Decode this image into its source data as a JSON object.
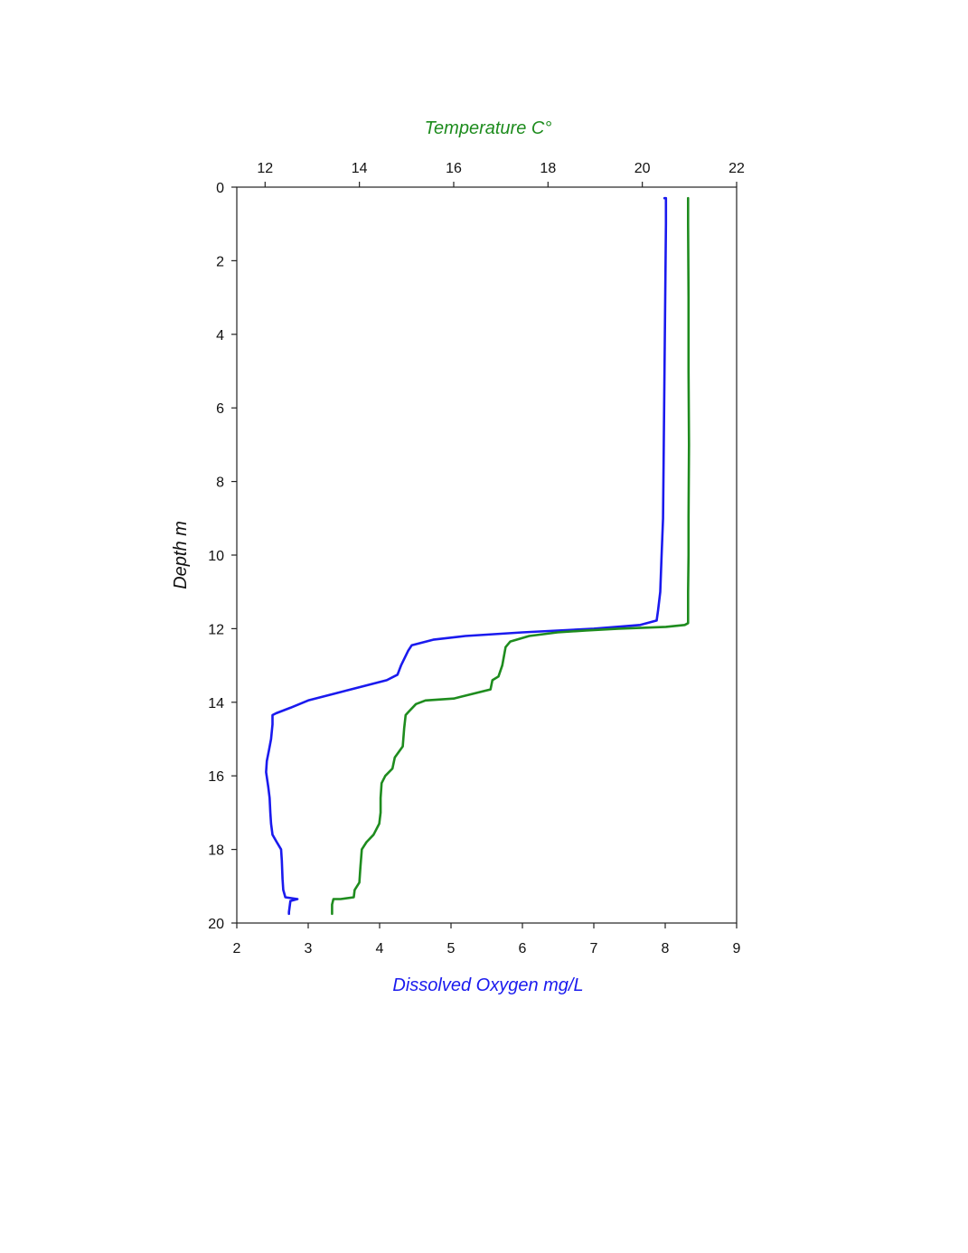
{
  "chart_data": {
    "type": "line",
    "y_axis": {
      "label": "Depth m",
      "range": [
        0,
        20
      ],
      "inverted": true,
      "ticks": [
        "0",
        "2",
        "4",
        "6",
        "8",
        "10",
        "12",
        "14",
        "16",
        "18",
        "20"
      ]
    },
    "x_axis_top": {
      "label": "Temperature C°",
      "range": [
        11.4,
        22
      ],
      "ticks": [
        "12",
        "14",
        "16",
        "18",
        "20",
        "22"
      ],
      "color": "#1e8c1e"
    },
    "x_axis_bottom": {
      "label": "Dissolved Oxygen mg/L",
      "range": [
        2,
        9
      ],
      "ticks": [
        "2",
        "3",
        "4",
        "5",
        "6",
        "7",
        "8",
        "9"
      ],
      "color": "#1a1aee"
    },
    "grid": false,
    "legend": "none",
    "series": [
      {
        "axis": "bottom",
        "color": "#1a1aee",
        "points": [
          [
            7.99,
            0.3
          ],
          [
            8.01,
            0.3
          ],
          [
            8.01,
            1.0
          ],
          [
            8.0,
            3.0
          ],
          [
            7.99,
            5.0
          ],
          [
            7.98,
            7.0
          ],
          [
            7.97,
            9.0
          ],
          [
            7.95,
            10.0
          ],
          [
            7.93,
            11.0
          ],
          [
            7.9,
            11.5
          ],
          [
            7.88,
            11.78
          ],
          [
            7.65,
            11.9
          ],
          [
            7.0,
            12.0
          ],
          [
            6.0,
            12.1
          ],
          [
            5.2,
            12.2
          ],
          [
            4.75,
            12.3
          ],
          [
            4.45,
            12.45
          ],
          [
            4.4,
            12.6
          ],
          [
            4.3,
            13.0
          ],
          [
            4.25,
            13.25
          ],
          [
            4.1,
            13.4
          ],
          [
            3.4,
            13.75
          ],
          [
            3.0,
            13.95
          ],
          [
            2.75,
            14.15
          ],
          [
            2.55,
            14.3
          ],
          [
            2.5,
            14.35
          ],
          [
            2.5,
            14.6
          ],
          [
            2.48,
            15.0
          ],
          [
            2.45,
            15.3
          ],
          [
            2.42,
            15.6
          ],
          [
            2.41,
            15.9
          ],
          [
            2.44,
            16.3
          ],
          [
            2.46,
            16.6
          ],
          [
            2.47,
            17.0
          ],
          [
            2.48,
            17.3
          ],
          [
            2.5,
            17.6
          ],
          [
            2.56,
            17.8
          ],
          [
            2.62,
            18.0
          ],
          [
            2.63,
            18.3
          ],
          [
            2.64,
            18.8
          ],
          [
            2.65,
            19.1
          ],
          [
            2.68,
            19.3
          ],
          [
            2.85,
            19.35
          ],
          [
            2.75,
            19.4
          ],
          [
            2.73,
            19.7
          ],
          [
            2.73,
            19.75
          ]
        ]
      },
      {
        "axis": "top",
        "color": "#1e8c1e",
        "points": [
          [
            20.97,
            0.3
          ],
          [
            20.97,
            1.0
          ],
          [
            20.98,
            3.0
          ],
          [
            20.98,
            5.0
          ],
          [
            20.99,
            7.0
          ],
          [
            20.98,
            9.0
          ],
          [
            20.98,
            10.0
          ],
          [
            20.97,
            11.0
          ],
          [
            20.97,
            11.85
          ],
          [
            20.9,
            11.9
          ],
          [
            20.5,
            11.95
          ],
          [
            19.5,
            12.0
          ],
          [
            18.8,
            12.05
          ],
          [
            18.2,
            12.1
          ],
          [
            17.6,
            12.2
          ],
          [
            17.2,
            12.35
          ],
          [
            17.1,
            12.5
          ],
          [
            17.03,
            13.0
          ],
          [
            16.95,
            13.3
          ],
          [
            16.82,
            13.4
          ],
          [
            16.78,
            13.65
          ],
          [
            16.0,
            13.9
          ],
          [
            15.4,
            13.95
          ],
          [
            15.2,
            14.05
          ],
          [
            15.05,
            14.25
          ],
          [
            14.98,
            14.35
          ],
          [
            14.95,
            14.7
          ],
          [
            14.92,
            15.2
          ],
          [
            14.75,
            15.5
          ],
          [
            14.7,
            15.8
          ],
          [
            14.55,
            16.0
          ],
          [
            14.47,
            16.2
          ],
          [
            14.45,
            16.6
          ],
          [
            14.45,
            17.0
          ],
          [
            14.42,
            17.3
          ],
          [
            14.3,
            17.6
          ],
          [
            14.15,
            17.8
          ],
          [
            14.05,
            18.0
          ],
          [
            14.02,
            18.5
          ],
          [
            14.0,
            18.9
          ],
          [
            13.9,
            19.1
          ],
          [
            13.88,
            19.3
          ],
          [
            13.6,
            19.35
          ],
          [
            13.45,
            19.35
          ],
          [
            13.42,
            19.5
          ],
          [
            13.42,
            19.75
          ]
        ]
      }
    ]
  }
}
